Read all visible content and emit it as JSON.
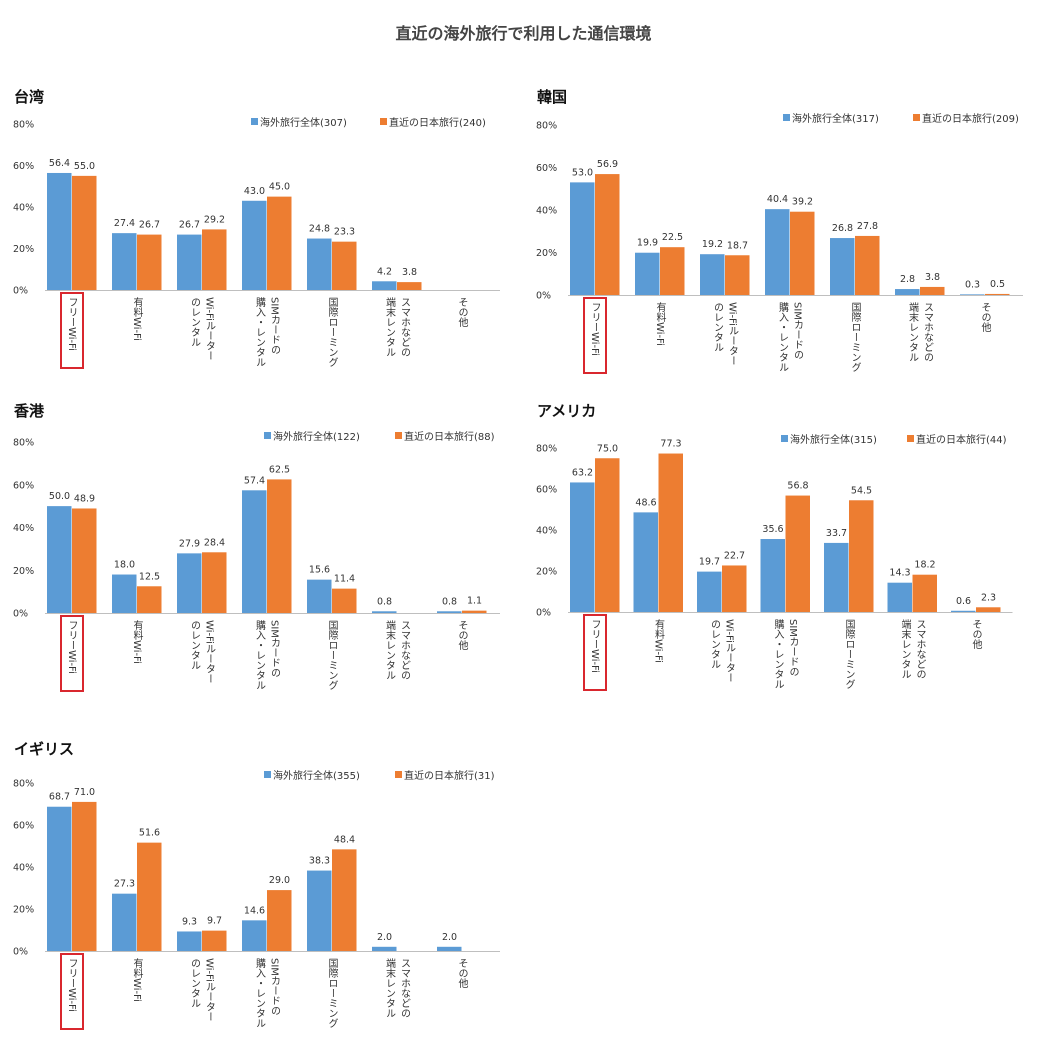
{
  "title": "直近の海外旅行で利用した通信環境",
  "colors": {
    "overall": "#5b9bd5",
    "japan": "#ed7d31",
    "highlight": "#d9272e"
  },
  "chart_data": [
    {
      "type": "bar",
      "title": "台湾",
      "categories": [
        "フリーWi-Fi",
        "有料Wi-Fi",
        "Wi-Fiルーターのレンタル",
        "SIMカードの購入・レンタル",
        "国際ローミング",
        "スマホなどの端末レンタル",
        "その他"
      ],
      "category_lines": [
        [
          "フリーWi-Fi"
        ],
        [
          "有料Wi-Fi"
        ],
        [
          "Wi-Fiルーター",
          "のレンタル"
        ],
        [
          "SIMカードの",
          "購入・レンタル"
        ],
        [
          "国際ローミング"
        ],
        [
          "スマホなどの",
          "端末レンタル"
        ],
        [
          "その他"
        ]
      ],
      "series": [
        {
          "name": "海外旅行全体(307)",
          "values": [
            56.4,
            27.4,
            26.7,
            43.0,
            24.8,
            4.2,
            null
          ]
        },
        {
          "name": "直近の日本旅行(240)",
          "values": [
            55.0,
            26.7,
            29.2,
            45.0,
            23.3,
            3.8,
            null
          ]
        }
      ],
      "yticks": [
        "0%",
        "20%",
        "40%",
        "60%",
        "80%"
      ],
      "ylim": [
        0,
        80
      ],
      "highlight_category": 0
    },
    {
      "type": "bar",
      "title": "韓国",
      "categories": [
        "フリーWi-Fi",
        "有料Wi-Fi",
        "Wi-Fiルーターのレンタル",
        "SIMカードの購入・レンタル",
        "国際ローミング",
        "スマホなどの端末レンタル",
        "その他"
      ],
      "category_lines": [
        [
          "フリーWi-Fi"
        ],
        [
          "有料Wi-Fi"
        ],
        [
          "Wi-Fiルーター",
          "のレンタル"
        ],
        [
          "SIMカードの",
          "購入・レンタル"
        ],
        [
          "国際ローミング"
        ],
        [
          "スマホなどの",
          "端末レンタル"
        ],
        [
          "その他"
        ]
      ],
      "series": [
        {
          "name": "海外旅行全体(317)",
          "values": [
            53.0,
            19.9,
            19.2,
            40.4,
            26.8,
            2.8,
            0.3
          ]
        },
        {
          "name": "直近の日本旅行(209)",
          "values": [
            56.9,
            22.5,
            18.7,
            39.2,
            27.8,
            3.8,
            0.5
          ]
        }
      ],
      "yticks": [
        "0%",
        "20%",
        "40%",
        "60%",
        "80%"
      ],
      "ylim": [
        0,
        80
      ],
      "highlight_category": 0
    },
    {
      "type": "bar",
      "title": "香港",
      "categories": [
        "フリーWi-Fi",
        "有料Wi-Fi",
        "Wi-Fiルーターのレンタル",
        "SIMカードの購入・レンタル",
        "国際ローミング",
        "スマホなどの端末レンタル",
        "その他"
      ],
      "category_lines": [
        [
          "フリーWi-Fi"
        ],
        [
          "有料Wi-Fi"
        ],
        [
          "Wi-Fiルーター",
          "のレンタル"
        ],
        [
          "SIMカードの",
          "購入・レンタル"
        ],
        [
          "国際ローミング"
        ],
        [
          "スマホなどの",
          "端末レンタル"
        ],
        [
          "その他"
        ]
      ],
      "series": [
        {
          "name": "海外旅行全体(122)",
          "values": [
            50.0,
            18.0,
            27.9,
            57.4,
            15.6,
            0.8,
            0.8
          ]
        },
        {
          "name": "直近の日本旅行(88)",
          "values": [
            48.9,
            12.5,
            28.4,
            62.5,
            11.4,
            null,
            1.1
          ]
        }
      ],
      "yticks": [
        "0%",
        "20%",
        "40%",
        "60%",
        "80%"
      ],
      "ylim": [
        0,
        80
      ],
      "highlight_category": 0
    },
    {
      "type": "bar",
      "title": "アメリカ",
      "categories": [
        "フリーWi-Fi",
        "有料Wi-Fi",
        "Wi-Fiルーターのレンタル",
        "SIMカードの購入・レンタル",
        "国際ローミング",
        "スマホなどの端末レンタル",
        "その他"
      ],
      "category_lines": [
        [
          "フリーWi-Fi"
        ],
        [
          "有料Wi-Fi"
        ],
        [
          "Wi-Fiルーター",
          "のレンタル"
        ],
        [
          "SIMカードの",
          "購入・レンタル"
        ],
        [
          "国際ローミング"
        ],
        [
          "スマホなどの",
          "端末レンタル"
        ],
        [
          "その他"
        ]
      ],
      "series": [
        {
          "name": "海外旅行全体(315)",
          "values": [
            63.2,
            48.6,
            19.7,
            35.6,
            33.7,
            14.3,
            0.6
          ]
        },
        {
          "name": "直近の日本旅行(44)",
          "values": [
            75.0,
            77.3,
            22.7,
            56.8,
            54.5,
            18.2,
            2.3
          ]
        }
      ],
      "yticks": [
        "0%",
        "20%",
        "40%",
        "60%",
        "80%"
      ],
      "ylim": [
        0,
        80
      ],
      "highlight_category": 0
    },
    {
      "type": "bar",
      "title": "イギリス",
      "categories": [
        "フリーWi-Fi",
        "有料Wi-Fi",
        "Wi-Fiルーターのレンタル",
        "SIMカードの購入・レンタル",
        "国際ローミング",
        "スマホなどの端末レンタル",
        "その他"
      ],
      "category_lines": [
        [
          "フリーWi-Fi"
        ],
        [
          "有料Wi-Fi"
        ],
        [
          "Wi-Fiルーター",
          "のレンタル"
        ],
        [
          "SIMカードの",
          "購入・レンタル"
        ],
        [
          "国際ローミング"
        ],
        [
          "スマホなどの",
          "端末レンタル"
        ],
        [
          "その他"
        ]
      ],
      "series": [
        {
          "name": "海外旅行全体(355)",
          "values": [
            68.7,
            27.3,
            9.3,
            14.6,
            38.3,
            2.0,
            2.0
          ]
        },
        {
          "name": "直近の日本旅行(31)",
          "values": [
            71.0,
            51.6,
            9.7,
            29.0,
            48.4,
            null,
            null
          ]
        }
      ],
      "yticks": [
        "0%",
        "20%",
        "40%",
        "60%",
        "80%"
      ],
      "ylim": [
        0,
        80
      ],
      "highlight_category": 0
    }
  ]
}
